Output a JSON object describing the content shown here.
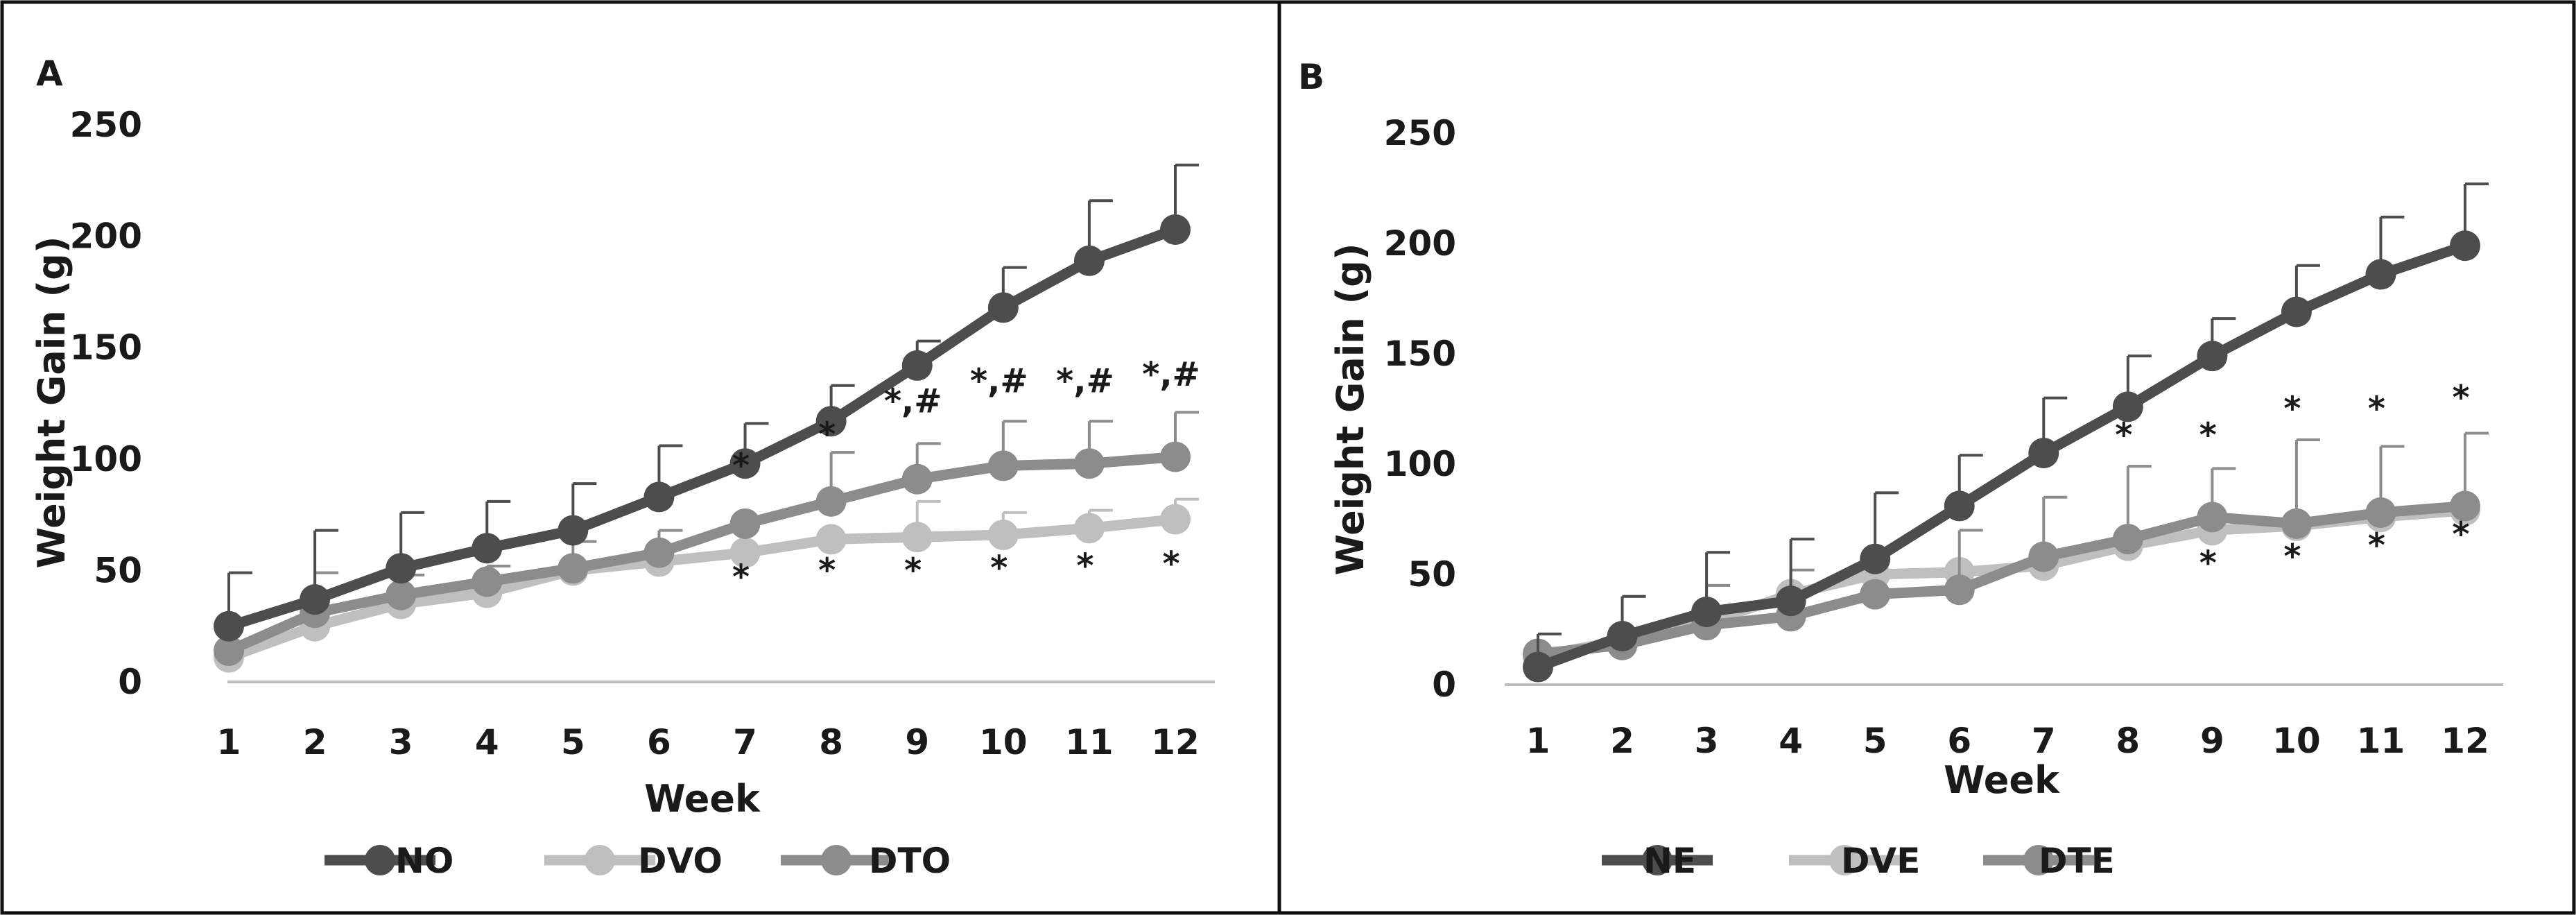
{
  "colors": {
    "dark": "#4d4d4d",
    "light": "#bfbfbf",
    "mid": "#8c8c8c",
    "frame": "#111111",
    "axis": "#bdbdbd"
  },
  "chart_data": [
    {
      "type": "line",
      "panel_label": "A",
      "xlabel": "Week",
      "ylabel": "Weight Gain (g)",
      "categories": [
        "1",
        "2",
        "3",
        "4",
        "5",
        "6",
        "7",
        "8",
        "9",
        "10",
        "11",
        "12"
      ],
      "ylim": [
        0,
        250
      ],
      "yticks": [
        "0",
        "50",
        "100",
        "150",
        "200",
        "250"
      ],
      "grid": false,
      "legend_position": "bottom",
      "series": [
        {
          "name": "NO",
          "color": "#4d4d4d",
          "values": [
            25,
            37,
            51,
            60,
            68,
            83,
            98,
            117,
            142,
            168,
            189,
            203
          ],
          "errors": [
            24,
            31,
            25,
            21,
            21,
            23,
            18,
            16,
            11,
            18,
            27,
            29
          ]
        },
        {
          "name": "DVO",
          "color": "#bfbfbf",
          "values": [
            11,
            25,
            35,
            40,
            50,
            54,
            58,
            64,
            65,
            66,
            69,
            73
          ],
          "errors": [
            0,
            0,
            0,
            0,
            0,
            0,
            0,
            0,
            16,
            10,
            8,
            9
          ]
        },
        {
          "name": "DTO",
          "color": "#8c8c8c",
          "values": [
            14,
            31,
            39,
            45,
            51,
            58,
            71,
            81,
            91,
            97,
            98,
            101
          ],
          "errors": [
            0,
            18,
            9,
            7,
            12,
            10,
            0,
            22,
            16,
            20,
            19,
            20
          ]
        }
      ],
      "annotations": [
        {
          "x": "7",
          "y": 92,
          "text": "*"
        },
        {
          "x": "8",
          "y": 106,
          "text": "*"
        },
        {
          "x": "9",
          "y": 121,
          "text": "*,#"
        },
        {
          "x": "10",
          "y": 130,
          "text": "*,#"
        },
        {
          "x": "11",
          "y": 130,
          "text": "*,#"
        },
        {
          "x": "12",
          "y": 133,
          "text": "*,#"
        },
        {
          "x": "7",
          "y": 42,
          "text": "*"
        },
        {
          "x": "8",
          "y": 45,
          "text": "*"
        },
        {
          "x": "9",
          "y": 45,
          "text": "*"
        },
        {
          "x": "10",
          "y": 46,
          "text": "*"
        },
        {
          "x": "11",
          "y": 47,
          "text": "*"
        },
        {
          "x": "12",
          "y": 48,
          "text": "*"
        }
      ]
    },
    {
      "type": "line",
      "panel_label": "B",
      "xlabel": "Week",
      "ylabel": "Weight Gain (g)",
      "categories": [
        "1",
        "2",
        "3",
        "4",
        "5",
        "6",
        "7",
        "8",
        "9",
        "10",
        "11",
        "12"
      ],
      "ylim": [
        0,
        250
      ],
      "yticks": [
        "0",
        "50",
        "100",
        "150",
        "200",
        "250"
      ],
      "grid": false,
      "legend_position": "bottom",
      "series": [
        {
          "name": "NE",
          "color": "#4d4d4d",
          "values": [
            8,
            22,
            33,
            38,
            57,
            81,
            105,
            126,
            149,
            169,
            186,
            199
          ],
          "errors": [
            15,
            18,
            27,
            28,
            30,
            23,
            25,
            23,
            17,
            21,
            26,
            28
          ]
        },
        {
          "name": "DVE",
          "color": "#bfbfbf",
          "values": [
            13,
            20,
            28,
            41,
            50,
            51,
            54,
            63,
            70,
            72,
            76,
            79
          ],
          "errors": [
            0,
            0,
            0,
            0,
            0,
            0,
            0,
            0,
            0,
            0,
            0,
            0
          ]
        },
        {
          "name": "DTE",
          "color": "#8c8c8c",
          "values": [
            14,
            18,
            27,
            31,
            41,
            43,
            58,
            66,
            76,
            73,
            78,
            81
          ],
          "errors": [
            0,
            22,
            18,
            21,
            0,
            27,
            27,
            33,
            22,
            38,
            30,
            33
          ]
        }
      ],
      "annotations": [
        {
          "x": "8",
          "y": 108,
          "text": "*"
        },
        {
          "x": "9",
          "y": 108,
          "text": "*"
        },
        {
          "x": "10",
          "y": 120,
          "text": "*"
        },
        {
          "x": "11",
          "y": 120,
          "text": "*"
        },
        {
          "x": "12",
          "y": 125,
          "text": "*"
        },
        {
          "x": "9",
          "y": 50,
          "text": "*"
        },
        {
          "x": "10",
          "y": 53,
          "text": "*"
        },
        {
          "x": "11",
          "y": 58,
          "text": "*"
        },
        {
          "x": "12",
          "y": 63,
          "text": "*"
        }
      ]
    }
  ]
}
